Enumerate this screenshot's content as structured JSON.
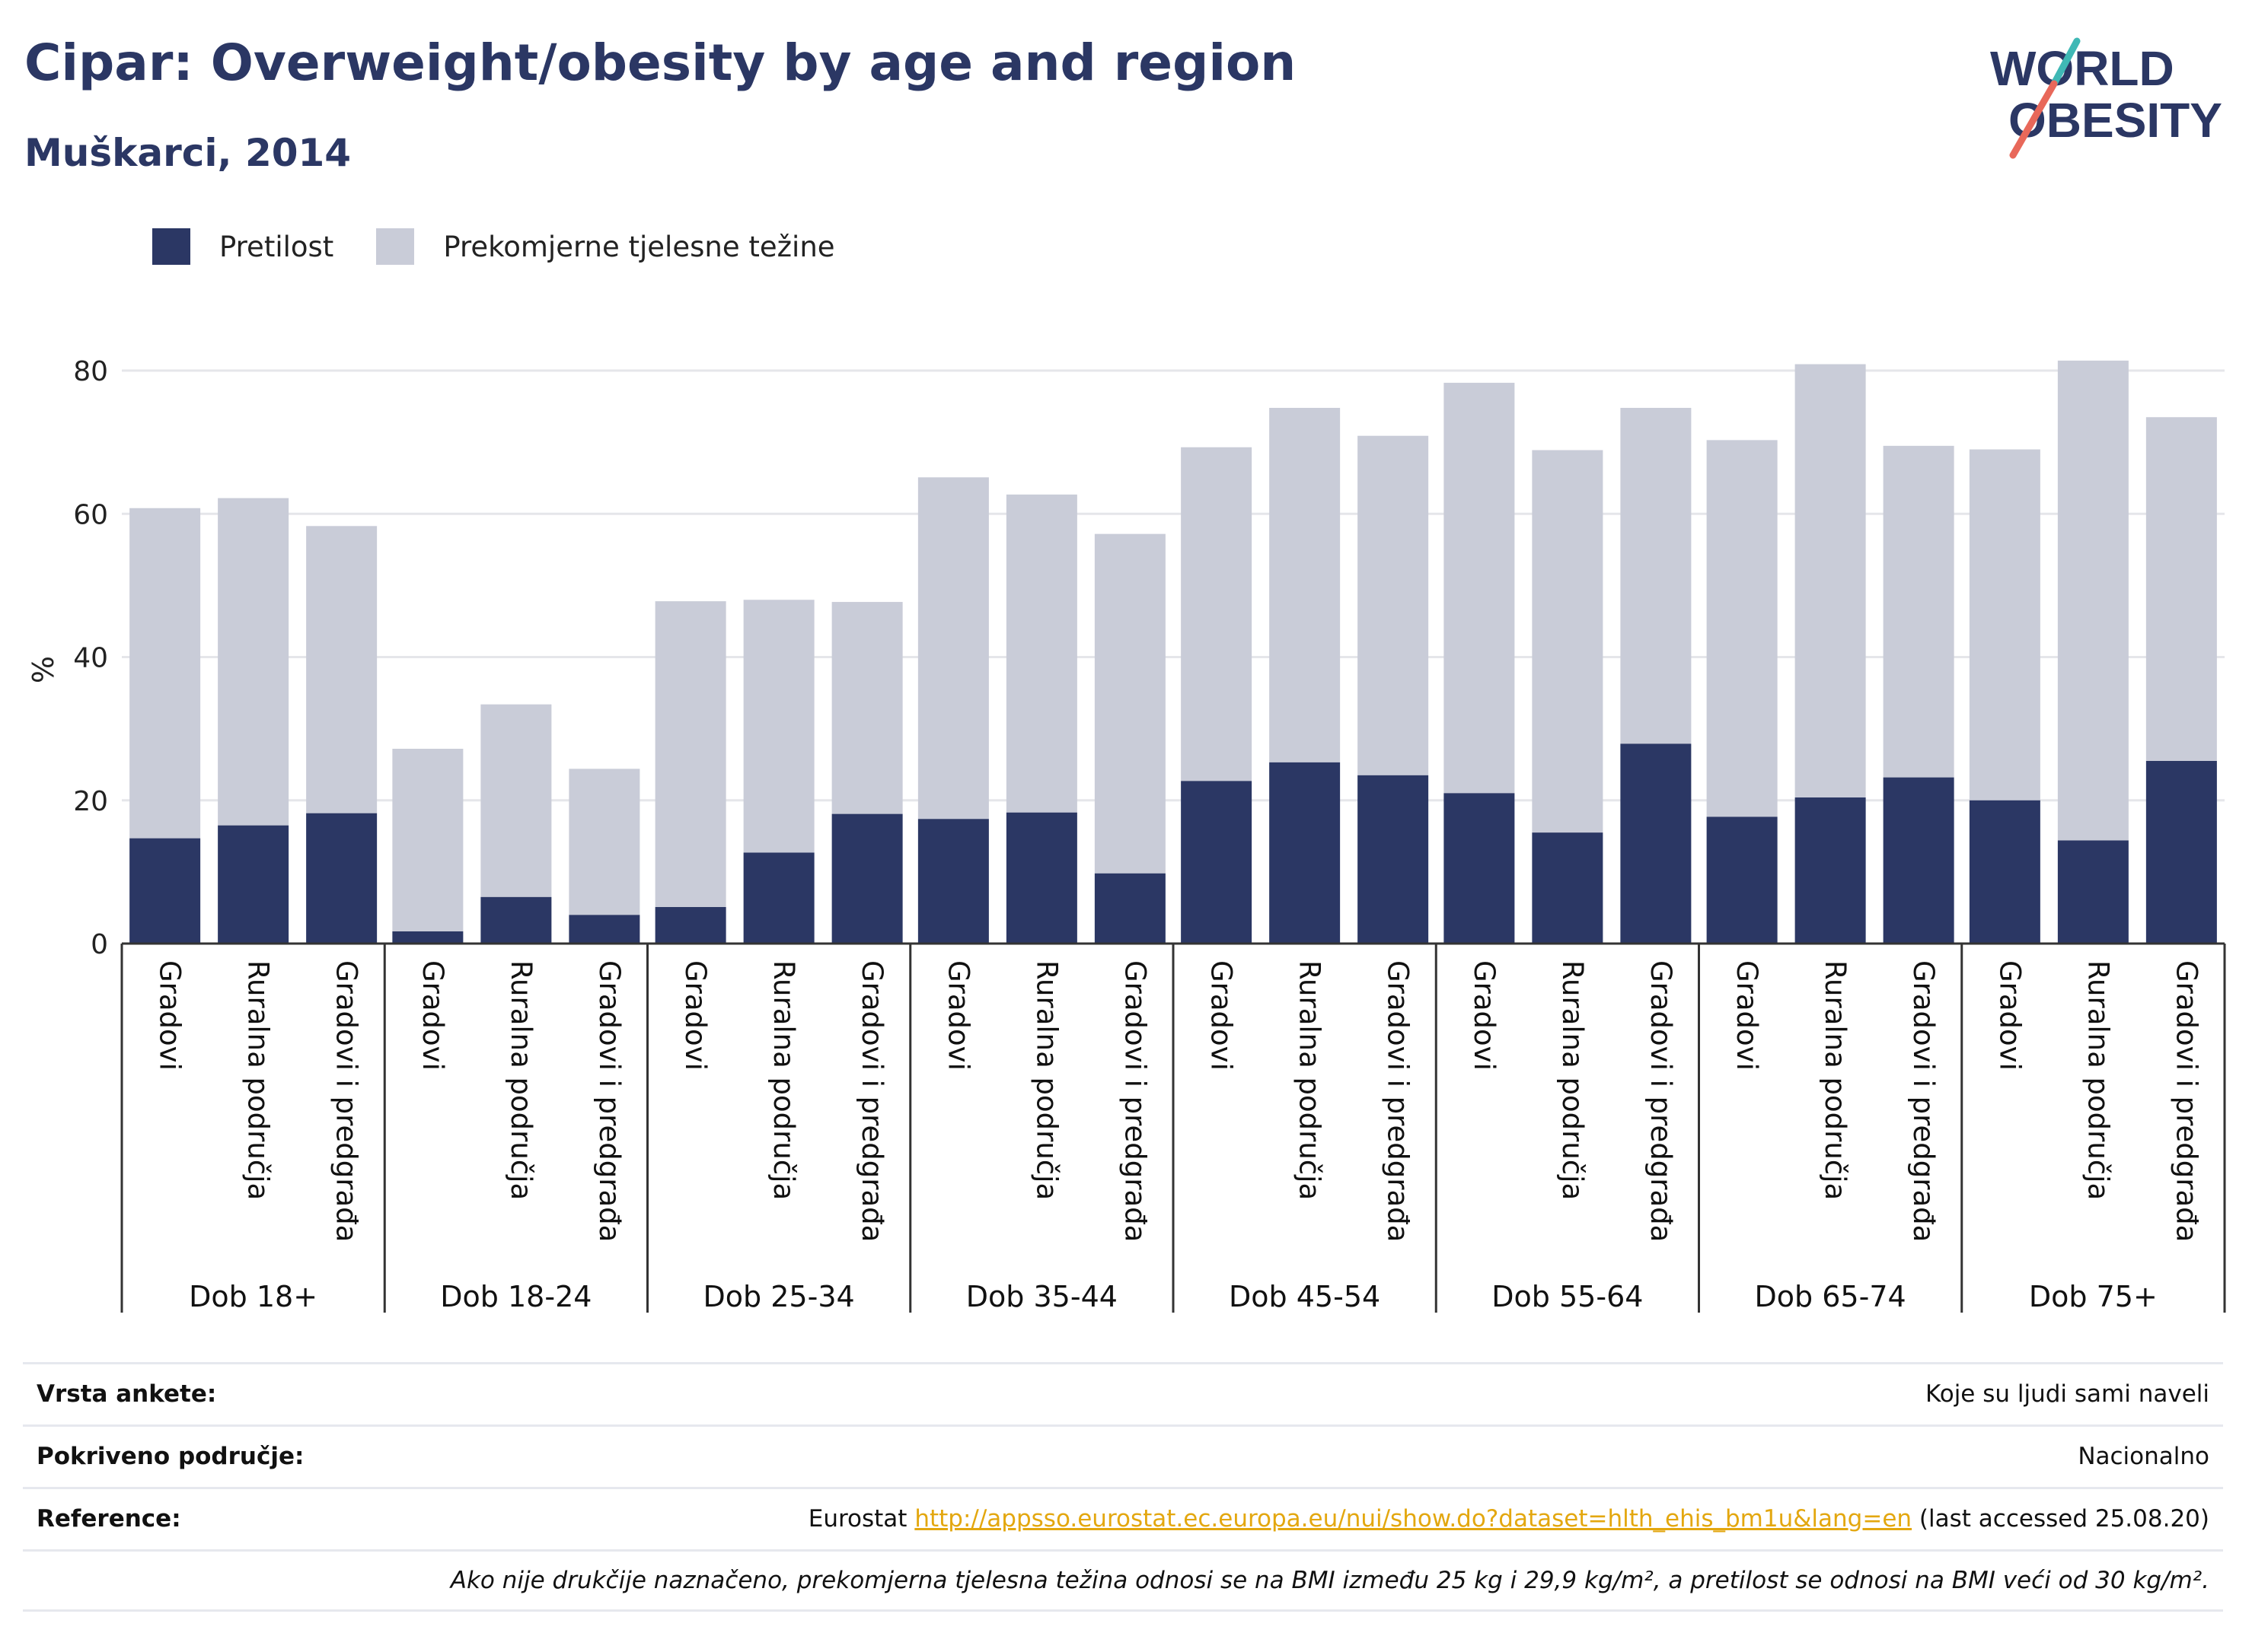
{
  "header": {
    "title": "Cipar: Overweight/obesity by age and region",
    "subtitle": "Muškarci, 2014"
  },
  "logo": {
    "line1": "WORLD",
    "line2": "OBESITY",
    "accent_teal": "#3fb8b5",
    "accent_coral": "#e8685a"
  },
  "colors": {
    "obesity": "#2b3764",
    "overweight": "#c9ccd8",
    "gridline": "#e5e6ea",
    "axis": "#333333"
  },
  "legend": [
    {
      "label": "Pretilost",
      "color": "#2b3764"
    },
    {
      "label": "Prekomjerne tjelesne težine",
      "color": "#c9ccd8"
    }
  ],
  "chart_data": {
    "type": "bar",
    "stacked": true,
    "ylabel": "%",
    "ylim": [
      0,
      85
    ],
    "yticks": [
      0,
      20,
      40,
      60,
      80
    ],
    "grid": true,
    "legend_position": "top-left",
    "groups": [
      {
        "label": "Dob 18+",
        "categories": [
          "Gradovi",
          "Ruralna područja",
          "Gradovi i predgrađa"
        ],
        "obesity": [
          14.7,
          16.5,
          18.2
        ],
        "total": [
          60.8,
          62.2,
          58.3
        ]
      },
      {
        "label": "Dob 18-24",
        "categories": [
          "Gradovi",
          "Ruralna područja",
          "Gradovi i predgrađa"
        ],
        "obesity": [
          1.7,
          6.5,
          4.0
        ],
        "total": [
          27.2,
          33.4,
          24.4
        ]
      },
      {
        "label": "Dob 25-34",
        "categories": [
          "Gradovi",
          "Ruralna područja",
          "Gradovi i predgrađa"
        ],
        "obesity": [
          5.1,
          12.7,
          18.1
        ],
        "total": [
          47.8,
          48.0,
          47.7
        ]
      },
      {
        "label": "Dob 35-44",
        "categories": [
          "Gradovi",
          "Ruralna područja",
          "Gradovi i predgrađa"
        ],
        "obesity": [
          17.4,
          18.3,
          9.8
        ],
        "total": [
          65.1,
          62.7,
          57.2
        ]
      },
      {
        "label": "Dob 45-54",
        "categories": [
          "Gradovi",
          "Ruralna područja",
          "Gradovi i predgrađa"
        ],
        "obesity": [
          22.7,
          25.3,
          23.5
        ],
        "total": [
          69.3,
          74.8,
          70.9
        ]
      },
      {
        "label": "Dob 55-64",
        "categories": [
          "Gradovi",
          "Ruralna područja",
          "Gradovi i predgrađa"
        ],
        "obesity": [
          21.0,
          15.5,
          27.9
        ],
        "total": [
          78.3,
          68.9,
          74.8
        ]
      },
      {
        "label": "Dob 65-74",
        "categories": [
          "Gradovi",
          "Ruralna područja",
          "Gradovi i predgrađa"
        ],
        "obesity": [
          17.7,
          20.4,
          23.2
        ],
        "total": [
          70.3,
          80.9,
          69.5
        ]
      },
      {
        "label": "Dob 75+",
        "categories": [
          "Gradovi",
          "Ruralna područja",
          "Gradovi i predgrađa"
        ],
        "obesity": [
          20.0,
          14.4,
          25.5
        ],
        "total": [
          69.0,
          81.4,
          73.5
        ]
      }
    ]
  },
  "meta": {
    "survey_type_label": "Vrsta ankete:",
    "survey_type_value": "Koje su ljudi sami naveli",
    "coverage_label": "Pokriveno područje:",
    "coverage_value": "Nacionalno",
    "reference_label": "Reference:",
    "reference_prefix": "Eurostat",
    "reference_link": "http://appsso.eurostat.ec.europa.eu/nui/show.do?dataset=hlth_ehis_bm1u&lang=en",
    "reference_suffix": "(last accessed 25.08.20)",
    "note": "Ako nije drukčije naznačeno, prekomjerna tjelesna težina odnosi se na BMI između 25 kg i 29,9 kg/m², a pretilost se odnosi na BMI veći od 30 kg/m²."
  }
}
